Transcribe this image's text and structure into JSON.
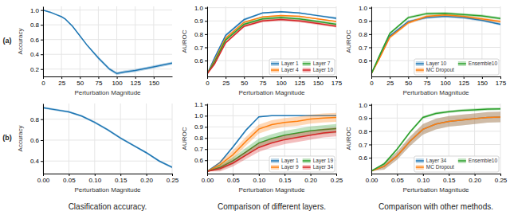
{
  "chart_data": [
    {
      "type": "line",
      "xlabel": "Perturbation Magnitude",
      "ylabel": "Accuracy",
      "x": [
        0,
        10,
        20,
        25,
        30,
        40,
        50,
        60,
        75,
        90,
        100,
        110,
        125,
        140,
        150,
        160,
        175
      ],
      "series": [
        {
          "values": [
            1.0,
            0.97,
            0.93,
            0.91,
            0.88,
            0.78,
            0.65,
            0.52,
            0.35,
            0.2,
            0.14,
            0.16,
            0.18,
            0.21,
            0.23,
            0.25,
            0.28
          ],
          "y_low": [
            1.0,
            0.96,
            0.92,
            0.9,
            0.87,
            0.77,
            0.64,
            0.51,
            0.33,
            0.18,
            0.12,
            0.14,
            0.16,
            0.19,
            0.21,
            0.23,
            0.26
          ],
          "y_high": [
            1.0,
            0.98,
            0.94,
            0.92,
            0.89,
            0.79,
            0.66,
            0.53,
            0.37,
            0.22,
            0.16,
            0.18,
            0.2,
            0.23,
            0.25,
            0.27,
            0.3
          ]
        }
      ],
      "xlim": [
        0,
        175
      ],
      "ylim": [
        0.1,
        1.05
      ],
      "xticks": [
        0,
        25,
        50,
        75,
        100,
        125,
        150
      ],
      "yticks": [
        0.2,
        0.4,
        0.6,
        0.8,
        {
          "value": 1.0,
          "label": "1.0"
        }
      ],
      "grid": true
    },
    {
      "type": "line",
      "xlabel": "Perturbation Magnitude",
      "ylabel": "Accuracy",
      "x": [
        0.0,
        0.025,
        0.05,
        0.075,
        0.1,
        0.125,
        0.15,
        0.175,
        0.2,
        0.225,
        0.25
      ],
      "series": [
        {
          "values": [
            0.91,
            0.89,
            0.87,
            0.83,
            0.77,
            0.7,
            0.62,
            0.55,
            0.48,
            0.4,
            0.34
          ],
          "y_low": [
            0.9,
            0.88,
            0.86,
            0.82,
            0.76,
            0.69,
            0.61,
            0.54,
            0.47,
            0.39,
            0.33
          ],
          "y_high": [
            0.92,
            0.9,
            0.88,
            0.84,
            0.78,
            0.71,
            0.63,
            0.56,
            0.49,
            0.41,
            0.35
          ]
        }
      ],
      "xlim": [
        0.0,
        0.25
      ],
      "ylim": [
        0.28,
        0.95
      ],
      "xticks": [
        {
          "value": 0.0,
          "label": "0.00"
        },
        0.05,
        {
          "value": 0.1,
          "label": "0.10"
        },
        0.15,
        {
          "value": 0.2,
          "label": "0.20"
        },
        0.25
      ],
      "yticks": [
        0.4,
        0.6,
        0.8
      ],
      "grid": true
    },
    {
      "type": "line",
      "xlabel": "Perturbation Magnitude",
      "ylabel": "AUROC",
      "x": [
        0,
        10,
        25,
        50,
        75,
        100,
        125,
        150,
        175
      ],
      "series": [
        {
          "name": "Layer 1",
          "values": [
            0.5,
            0.62,
            0.79,
            0.91,
            0.96,
            0.97,
            0.96,
            0.94,
            0.92
          ],
          "y_low": [
            0.5,
            0.61,
            0.78,
            0.9,
            0.955,
            0.965,
            0.955,
            0.935,
            0.91
          ],
          "y_high": [
            0.5,
            0.63,
            0.8,
            0.92,
            0.965,
            0.975,
            0.965,
            0.945,
            0.93
          ]
        },
        {
          "name": "Layer 4",
          "values": [
            0.5,
            0.6,
            0.77,
            0.89,
            0.93,
            0.94,
            0.935,
            0.915,
            0.895
          ],
          "y_low": [
            0.5,
            0.59,
            0.76,
            0.885,
            0.925,
            0.935,
            0.93,
            0.91,
            0.89
          ],
          "y_high": [
            0.5,
            0.61,
            0.78,
            0.895,
            0.935,
            0.945,
            0.94,
            0.92,
            0.9
          ]
        },
        {
          "name": "Layer 7",
          "values": [
            0.5,
            0.59,
            0.755,
            0.875,
            0.915,
            0.925,
            0.915,
            0.895,
            0.875
          ],
          "y_low": [
            0.5,
            0.58,
            0.745,
            0.865,
            0.905,
            0.915,
            0.905,
            0.885,
            0.865
          ],
          "y_high": [
            0.5,
            0.6,
            0.765,
            0.885,
            0.925,
            0.935,
            0.925,
            0.905,
            0.885
          ]
        },
        {
          "name": "Layer 10",
          "values": [
            0.5,
            0.575,
            0.735,
            0.86,
            0.9,
            0.91,
            0.9,
            0.88,
            0.86
          ],
          "y_low": [
            0.5,
            0.565,
            0.725,
            0.85,
            0.89,
            0.9,
            0.89,
            0.87,
            0.85
          ],
          "y_high": [
            0.5,
            0.585,
            0.745,
            0.87,
            0.91,
            0.92,
            0.91,
            0.89,
            0.87
          ]
        }
      ],
      "xlim": [
        0,
        175
      ],
      "ylim": [
        0.48,
        1.01
      ],
      "xticks": [
        0,
        25,
        50,
        75,
        100,
        125,
        150,
        175
      ],
      "yticks": [
        0.6,
        0.7,
        0.8,
        0.9,
        {
          "value": 1.0,
          "label": "1.0"
        }
      ],
      "grid": true,
      "legend": "lower right"
    },
    {
      "type": "line",
      "xlabel": "Perturbation Magnitude",
      "ylabel": "AUROC",
      "x": [
        0.0,
        0.025,
        0.05,
        0.075,
        0.1,
        0.125,
        0.15,
        0.175,
        0.2,
        0.225,
        0.25
      ],
      "series": [
        {
          "name": "Layer 1",
          "values": [
            0.5,
            0.58,
            0.72,
            0.87,
            0.99,
            1.0,
            1.0,
            1.0,
            1.0,
            1.0,
            1.0
          ],
          "y_low": [
            0.5,
            0.57,
            0.71,
            0.86,
            0.985,
            0.998,
            1.0,
            1.0,
            1.0,
            1.0,
            1.0
          ],
          "y_high": [
            0.5,
            0.59,
            0.73,
            0.88,
            0.995,
            1.002,
            1.002,
            1.002,
            1.002,
            1.002,
            1.002
          ]
        },
        {
          "name": "Layer 9",
          "values": [
            0.5,
            0.56,
            0.65,
            0.77,
            0.88,
            0.92,
            0.94,
            0.95,
            0.97,
            0.98,
            0.985
          ],
          "y_low": [
            0.5,
            0.53,
            0.61,
            0.73,
            0.84,
            0.88,
            0.9,
            0.91,
            0.93,
            0.94,
            0.945
          ],
          "y_high": [
            0.5,
            0.59,
            0.69,
            0.81,
            0.92,
            0.96,
            0.98,
            0.99,
            1.01,
            1.02,
            1.025
          ]
        },
        {
          "name": "Layer 19",
          "values": [
            0.5,
            0.535,
            0.595,
            0.675,
            0.755,
            0.795,
            0.825,
            0.845,
            0.865,
            0.875,
            0.885
          ],
          "y_low": [
            0.5,
            0.51,
            0.565,
            0.64,
            0.715,
            0.755,
            0.785,
            0.805,
            0.825,
            0.835,
            0.845
          ],
          "y_high": [
            0.5,
            0.56,
            0.625,
            0.71,
            0.795,
            0.835,
            0.865,
            0.885,
            0.905,
            0.915,
            0.925
          ]
        },
        {
          "name": "Layer 34",
          "values": [
            0.5,
            0.525,
            0.575,
            0.645,
            0.715,
            0.755,
            0.785,
            0.805,
            0.825,
            0.845,
            0.855
          ],
          "y_low": [
            0.5,
            0.5,
            0.545,
            0.61,
            0.675,
            0.715,
            0.745,
            0.765,
            0.785,
            0.805,
            0.815
          ],
          "y_high": [
            0.5,
            0.55,
            0.605,
            0.68,
            0.755,
            0.795,
            0.825,
            0.845,
            0.865,
            0.885,
            0.895
          ]
        }
      ],
      "xlim": [
        0.0,
        0.25
      ],
      "ylim": [
        0.48,
        1.11
      ],
      "xticks": [
        {
          "value": 0.0,
          "label": "0.00"
        },
        0.05,
        {
          "value": 0.1,
          "label": "0.10"
        },
        0.15,
        {
          "value": 0.2,
          "label": "0.20"
        },
        0.25
      ],
      "yticks": [
        0.6,
        0.7,
        0.8,
        0.9,
        {
          "value": 1.0,
          "label": "1.0"
        },
        1.1
      ],
      "grid": true,
      "legend": "lower right"
    },
    {
      "type": "line",
      "xlabel": "Perturbation Magnitude",
      "ylabel": "AUROC",
      "x": [
        0,
        10,
        25,
        50,
        75,
        100,
        125,
        150,
        175
      ],
      "series": [
        {
          "name": "Layer 10",
          "values": [
            0.5,
            0.615,
            0.785,
            0.895,
            0.925,
            0.935,
            0.925,
            0.905,
            0.875
          ],
          "y_low": [
            0.5,
            0.605,
            0.775,
            0.885,
            0.915,
            0.925,
            0.915,
            0.895,
            0.865
          ],
          "y_high": [
            0.5,
            0.625,
            0.795,
            0.905,
            0.935,
            0.945,
            0.935,
            0.915,
            0.885
          ]
        },
        {
          "name": "MC Dropout",
          "values": [
            0.5,
            0.605,
            0.775,
            0.885,
            0.935,
            0.945,
            0.935,
            0.915,
            0.895
          ],
          "y_low": [
            0.5,
            0.595,
            0.765,
            0.875,
            0.925,
            0.935,
            0.925,
            0.905,
            0.885
          ],
          "y_high": [
            0.5,
            0.615,
            0.785,
            0.895,
            0.945,
            0.955,
            0.945,
            0.925,
            0.905
          ]
        },
        {
          "name": "Ensemble10",
          "values": [
            0.5,
            0.625,
            0.805,
            0.925,
            0.955,
            0.958,
            0.948,
            0.938,
            0.918
          ],
          "y_low": [
            0.5,
            0.615,
            0.795,
            0.915,
            0.945,
            0.948,
            0.938,
            0.928,
            0.908
          ],
          "y_high": [
            0.5,
            0.635,
            0.815,
            0.935,
            0.965,
            0.968,
            0.958,
            0.948,
            0.928
          ]
        }
      ],
      "xlim": [
        0,
        175
      ],
      "ylim": [
        0.48,
        1.01
      ],
      "xticks": [
        0,
        25,
        50,
        75,
        100,
        125,
        150,
        175
      ],
      "yticks": [
        0.6,
        0.7,
        0.8,
        0.9,
        {
          "value": 1.0,
          "label": "1.0"
        }
      ],
      "grid": true,
      "legend": "lower right"
    },
    {
      "type": "line",
      "xlabel": "Perturbation Magnitude",
      "ylabel": "AUROC",
      "x": [
        0.0,
        0.025,
        0.05,
        0.075,
        0.1,
        0.125,
        0.15,
        0.175,
        0.2,
        0.225,
        0.25
      ],
      "series": [
        {
          "name": "Layer 34",
          "values": [
            0.5,
            0.535,
            0.615,
            0.725,
            0.815,
            0.855,
            0.875,
            0.885,
            0.895,
            0.905,
            0.908
          ],
          "y_low": [
            0.5,
            0.51,
            0.585,
            0.69,
            0.775,
            0.815,
            0.835,
            0.845,
            0.855,
            0.865,
            0.868
          ],
          "y_high": [
            0.5,
            0.56,
            0.645,
            0.76,
            0.855,
            0.895,
            0.915,
            0.925,
            0.935,
            0.945,
            0.948
          ]
        },
        {
          "name": "MC Dropout",
          "values": [
            0.5,
            0.535,
            0.615,
            0.725,
            0.815,
            0.855,
            0.875,
            0.885,
            0.895,
            0.905,
            0.908
          ],
          "y_low": [
            0.5,
            0.51,
            0.585,
            0.69,
            0.775,
            0.815,
            0.835,
            0.845,
            0.855,
            0.865,
            0.868
          ],
          "y_high": [
            0.5,
            0.56,
            0.645,
            0.76,
            0.855,
            0.895,
            0.915,
            0.925,
            0.935,
            0.945,
            0.948
          ]
        },
        {
          "name": "Ensemble10",
          "values": [
            0.5,
            0.555,
            0.665,
            0.795,
            0.905,
            0.935,
            0.948,
            0.958,
            0.962,
            0.968,
            0.97
          ],
          "y_low": [
            0.5,
            0.545,
            0.655,
            0.785,
            0.895,
            0.925,
            0.938,
            0.948,
            0.952,
            0.958,
            0.96
          ],
          "y_high": [
            0.5,
            0.565,
            0.675,
            0.805,
            0.915,
            0.945,
            0.958,
            0.968,
            0.972,
            0.978,
            0.98
          ]
        }
      ],
      "xlim": [
        0.0,
        0.25
      ],
      "ylim": [
        0.48,
        1.01
      ],
      "xticks": [
        {
          "value": 0.0,
          "label": "0.00"
        },
        0.05,
        {
          "value": 0.1,
          "label": "0.10"
        },
        0.15,
        {
          "value": 0.2,
          "label": "0.20"
        },
        0.25
      ],
      "yticks": [
        0.6,
        0.7,
        0.8,
        0.9,
        {
          "value": 1.0,
          "label": "1.0"
        }
      ],
      "grid": true,
      "legend": "lower right"
    }
  ],
  "row_labels": [
    "(a)",
    "(b)"
  ],
  "col_labels": [
    "Clasification accuracy.",
    "Comparison of different layers.",
    "Comparison with other methods."
  ]
}
